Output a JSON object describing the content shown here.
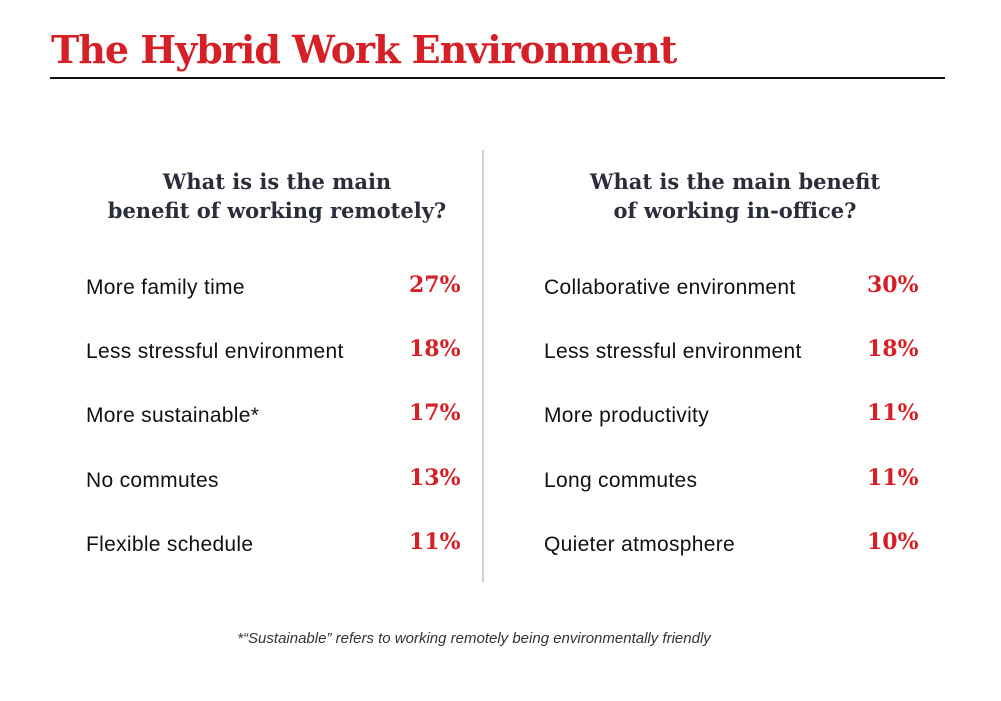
{
  "title": "The Hybrid Work Environment",
  "footnote": "*“Sustainable” refers to working remotely being environmentally friendly",
  "colors": {
    "accent": "#d52027",
    "heading": "#2b2d3a",
    "text": "#111111",
    "divider": "#d2d2d2"
  },
  "chart_data": [
    {
      "type": "table",
      "title": "What is is the main\nbenefit of working remotely?",
      "categories": [
        "More family time",
        "Less stressful environment",
        "More sustainable*",
        "No commutes",
        "Flexible schedule"
      ],
      "values": [
        27,
        18,
        17,
        13,
        11
      ],
      "value_labels": [
        "27%",
        "18%",
        "17%",
        "13%",
        "11%"
      ],
      "unit": "%"
    },
    {
      "type": "table",
      "title": "What is the main benefit\nof working in-office?",
      "categories": [
        "Collaborative environment",
        "Less stressful environment",
        "More productivity",
        "Long commutes",
        "Quieter atmosphere"
      ],
      "values": [
        30,
        18,
        11,
        11,
        10
      ],
      "value_labels": [
        "30%",
        "18%",
        "11%",
        "11%",
        "10%"
      ],
      "unit": "%"
    }
  ]
}
